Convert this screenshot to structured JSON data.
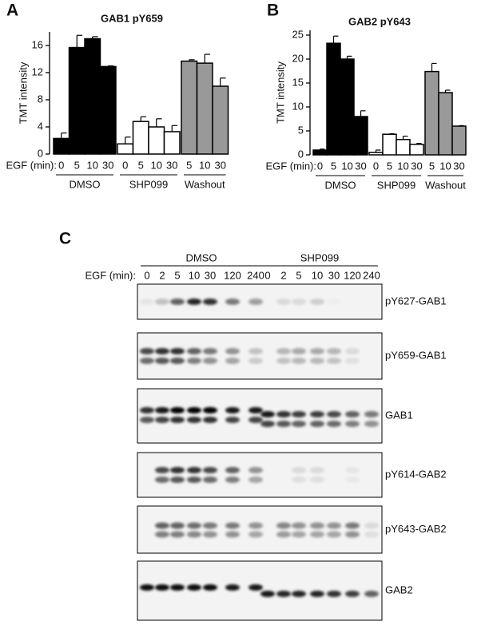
{
  "chart_data": [
    {
      "type": "bar",
      "label": "A",
      "title": "GAB1 pY659",
      "y_label": "TMT intensity",
      "x_label": "EGF (min):",
      "ylim": [
        0,
        18
      ],
      "yticks": [
        0,
        4,
        8,
        12,
        16
      ],
      "series": [
        {
          "name": "DMSO",
          "color": "#000000",
          "categories": [
            "0",
            "5",
            "10",
            "30"
          ],
          "values": [
            2.3,
            15.7,
            17,
            12.9
          ],
          "errors": [
            0.8,
            1.8,
            0.3,
            0.1
          ]
        },
        {
          "name": "SHP099",
          "color": "#ffffff",
          "categories": [
            "0",
            "5",
            "10",
            "30"
          ],
          "values": [
            1.5,
            4.8,
            4.0,
            3.3
          ],
          "errors": [
            1.0,
            0.7,
            1.2,
            0.9
          ]
        },
        {
          "name": "Washout",
          "color": "#999999",
          "categories": [
            "5",
            "10",
            "30"
          ],
          "values": [
            13.7,
            13.4,
            10
          ],
          "errors": [
            0.2,
            1.3,
            1.2
          ]
        }
      ]
    },
    {
      "type": "bar",
      "label": "B",
      "title": "GAB2 pY643",
      "y_label": "TMT intensity",
      "x_label": "EGF (min):",
      "ylim": [
        0,
        26
      ],
      "yticks": [
        0,
        5,
        10,
        15,
        20,
        25
      ],
      "series": [
        {
          "name": "DMSO",
          "color": "#000000",
          "categories": [
            "0",
            "5",
            "10",
            "30"
          ],
          "values": [
            1.0,
            23.3,
            20,
            8
          ],
          "errors": [
            0.2,
            1.5,
            0.6,
            1.2
          ]
        },
        {
          "name": "SHP099",
          "color": "#ffffff",
          "categories": [
            "0",
            "5",
            "10",
            "30"
          ],
          "values": [
            0.5,
            4.3,
            3.2,
            2.2
          ],
          "errors": [
            0.5,
            0.1,
            0.7,
            0.2
          ]
        },
        {
          "name": "Washout",
          "color": "#999999",
          "categories": [
            "5",
            "10",
            "30"
          ],
          "values": [
            17.4,
            13,
            6
          ],
          "errors": [
            1.7,
            0.5,
            0.1
          ]
        }
      ]
    }
  ],
  "blot": {
    "label": "C",
    "x_label": "EGF (min):",
    "groups": [
      {
        "name": "DMSO",
        "times": [
          "0",
          "2",
          "5",
          "10",
          "30",
          "120",
          "240"
        ]
      },
      {
        "name": "SHP099",
        "times": [
          "0",
          "2",
          "5",
          "10",
          "30",
          "120",
          "240"
        ]
      }
    ],
    "rows": [
      "pY627-GAB1",
      "pY659-GAB1",
      "GAB1",
      "pY614-GAB2",
      "pY643-GAB2",
      "GAB2"
    ]
  }
}
